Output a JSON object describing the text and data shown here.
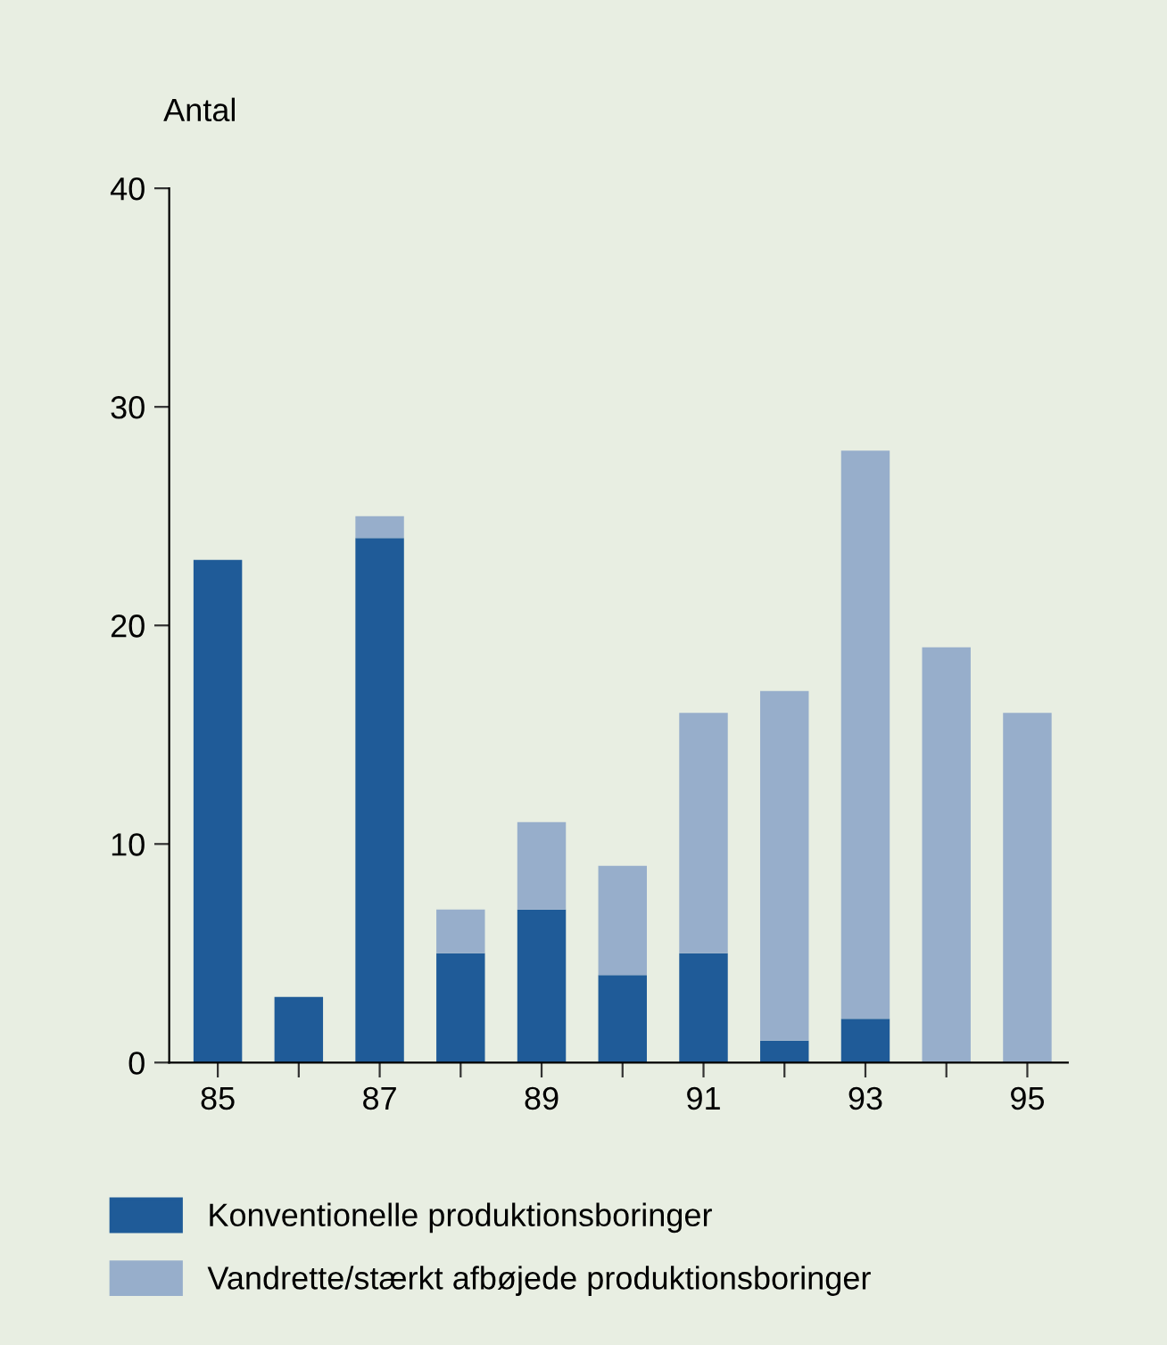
{
  "chart_data": {
    "type": "bar",
    "stacked": true,
    "ylabel": "Antal",
    "categories": [
      "85",
      null,
      "87",
      null,
      "89",
      null,
      "91",
      null,
      "93",
      null,
      "95"
    ],
    "series": [
      {
        "name": "Konventionelle produktionsboringer",
        "color": "#1f5b98",
        "values": [
          23,
          3,
          24,
          5,
          7,
          4,
          5,
          1,
          2,
          0,
          0
        ]
      },
      {
        "name": "Vandrette/stærkt afbøjede produktionsboringer",
        "color": "#97aecb",
        "values": [
          0,
          0,
          1,
          2,
          4,
          5,
          11,
          16,
          26,
          19,
          16
        ]
      }
    ],
    "ylim": [
      0,
      40
    ],
    "yticks": [
      0,
      10,
      20,
      30,
      40
    ],
    "grid": false,
    "legend": "bottom"
  }
}
